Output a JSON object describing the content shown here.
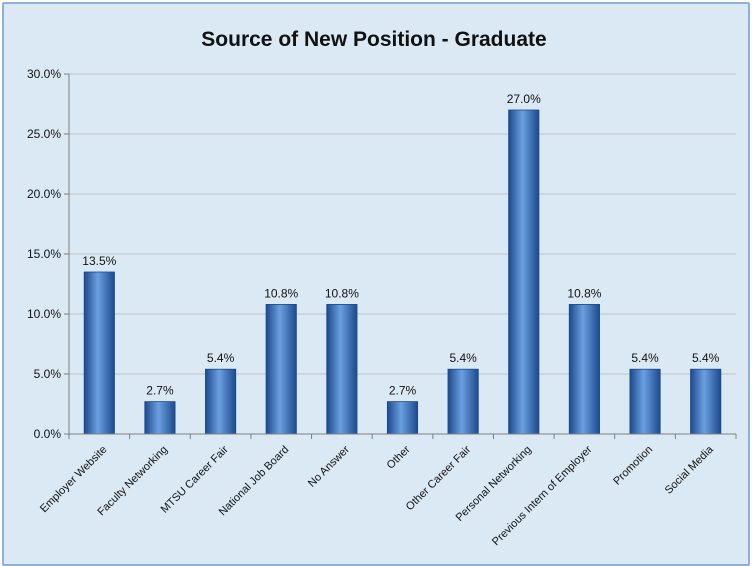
{
  "chart_data": {
    "type": "bar",
    "title": "Source of New Position - Graduate",
    "xlabel": "",
    "ylabel": "",
    "ylim": [
      0,
      30
    ],
    "yticks": [
      "0.0%",
      "5.0%",
      "10.0%",
      "15.0%",
      "20.0%",
      "25.0%",
      "30.0%"
    ],
    "grid": true,
    "legend": "none",
    "categories": [
      "Employer Website",
      "Faculty Networking",
      "MTSU Career Fair",
      "National Job Board",
      "No Answer",
      "Other",
      "Other Career Fair",
      "Personal Networking",
      "Previous Intern of Employer",
      "Promotion",
      "Social Media"
    ],
    "values": [
      13.5,
      2.7,
      5.4,
      10.8,
      10.8,
      2.7,
      5.4,
      27.0,
      10.8,
      5.4,
      5.4
    ],
    "data_labels": [
      "13.5%",
      "2.7%",
      "5.4%",
      "10.8%",
      "10.8%",
      "2.7%",
      "5.4%",
      "27.0%",
      "10.8%",
      "5.4%",
      "5.4%"
    ],
    "colors": {
      "bar": "#2e6cc0",
      "bar_light": "#6b9fe0",
      "bar_dark": "#1c4a8c",
      "background": "#dbe9f5",
      "grid": "#bfbfbf"
    }
  }
}
